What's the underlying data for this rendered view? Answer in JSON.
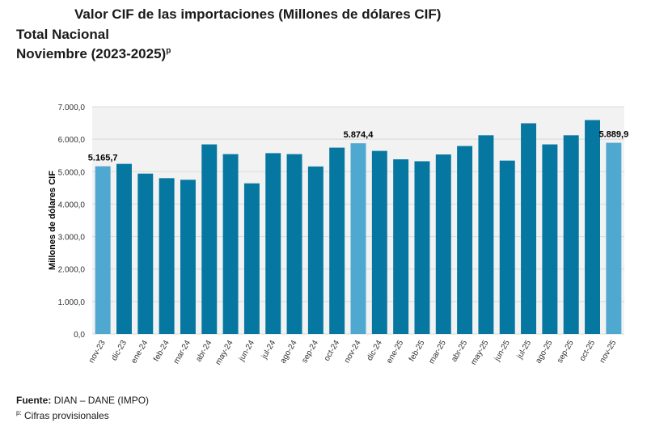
{
  "header": {
    "title": "Valor CIF de las importaciones (Millones de dólares CIF)",
    "line2": "Total Nacional",
    "line3": "Noviembre (2023-2025)",
    "line3_sup": "p"
  },
  "footer": {
    "source_label": "Fuente:",
    "source_value": "DIAN – DANE (IMPO)",
    "note_sup": "p:",
    "note_text": "Cifras provisionales"
  },
  "colors": {
    "bar_dark": "#0577a0",
    "bar_light": "#4fa8cf",
    "grid": "#d9d9d9",
    "plot_bg": "#f2f2f2"
  },
  "chart_data": {
    "type": "bar",
    "ylabel": "Millones de dólares CIF",
    "ylim": [
      0,
      7000
    ],
    "yticks": [
      "0,0",
      "1.000,0",
      "2.000,0",
      "3.000,0",
      "4.000,0",
      "5.000,0",
      "6.000,0",
      "7.000,0"
    ],
    "ytick_values": [
      0,
      1000,
      2000,
      3000,
      4000,
      5000,
      6000,
      7000
    ],
    "grid": true,
    "categories": [
      "nov-23",
      "dic-23",
      "ene-24",
      "feb-24",
      "mar-24",
      "abr-24",
      "may-24",
      "jun-24",
      "jul-24",
      "ago-24",
      "sep-24",
      "oct-24",
      "nov-24",
      "dic-24",
      "ene-25",
      "feb-25",
      "mar-25",
      "abr-25",
      "may-25",
      "jun-25",
      "jul-25",
      "ago-25",
      "sep-25",
      "oct-25",
      "nov-25"
    ],
    "values": [
      5165.7,
      5240,
      4940,
      4800,
      4750,
      5840,
      5540,
      4640,
      5570,
      5540,
      5160,
      5740,
      5874.4,
      5640,
      5380,
      5320,
      5530,
      5790,
      6120,
      5340,
      6490,
      5840,
      6120,
      6590,
      5889.9
    ],
    "highlighted": [
      "nov-23",
      "nov-24",
      "nov-25"
    ],
    "data_labels": [
      {
        "category": "nov-23",
        "text": "5.165,7"
      },
      {
        "category": "nov-24",
        "text": "5.874,4"
      },
      {
        "category": "nov-25",
        "text": "5.889,9"
      }
    ]
  }
}
